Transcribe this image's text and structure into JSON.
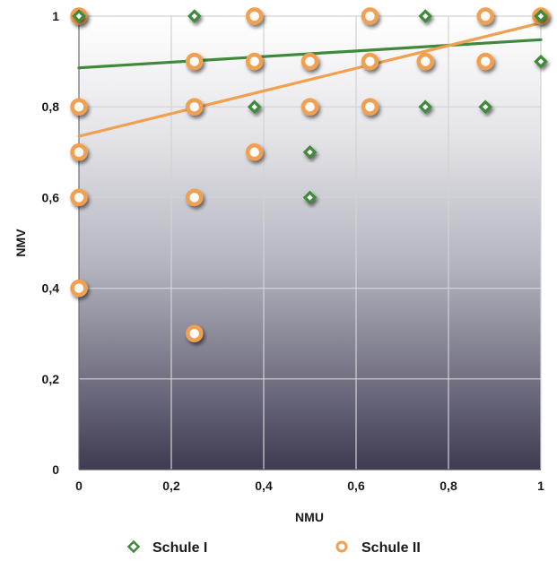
{
  "chart_data": {
    "type": "scatter",
    "xlabel": "NMU",
    "ylabel": "NMV",
    "xlim": [
      0,
      1
    ],
    "ylim": [
      0,
      1
    ],
    "x_ticks": [
      0,
      0.2,
      0.4,
      0.6,
      0.8,
      1
    ],
    "y_ticks": [
      0,
      0.2,
      0.4,
      0.6,
      0.8,
      1
    ],
    "x_tick_labels": [
      "0",
      "0,2",
      "0,4",
      "0,6",
      "0,8",
      "1"
    ],
    "y_tick_labels": [
      "0",
      "0,2",
      "0,4",
      "0,6",
      "0,8",
      "1"
    ],
    "grid": true,
    "legend_position": "bottom",
    "series": [
      {
        "name": "Schule I",
        "marker": "diamond",
        "color": "#3f8a3a",
        "points": [
          [
            0,
            1
          ],
          [
            0.25,
            1
          ],
          [
            0.38,
            0.8
          ],
          [
            0.5,
            0.7
          ],
          [
            0.5,
            0.6
          ],
          [
            0.75,
            1
          ],
          [
            0.75,
            0.8
          ],
          [
            0.88,
            0.8
          ],
          [
            1,
            1
          ],
          [
            1,
            0.9
          ]
        ],
        "trendline": {
          "from": [
            0,
            0.886
          ],
          "to": [
            1,
            0.948
          ]
        }
      },
      {
        "name": "Schule II",
        "marker": "circle",
        "color": "#f0a050",
        "points": [
          [
            0,
            1
          ],
          [
            0,
            0.8
          ],
          [
            0,
            0.7
          ],
          [
            0,
            0.6
          ],
          [
            0,
            0.4
          ],
          [
            0.25,
            0.9
          ],
          [
            0.25,
            0.8
          ],
          [
            0.25,
            0.6
          ],
          [
            0.25,
            0.3
          ],
          [
            0.38,
            1
          ],
          [
            0.38,
            0.9
          ],
          [
            0.38,
            0.7
          ],
          [
            0.5,
            0.9
          ],
          [
            0.5,
            0.8
          ],
          [
            0.63,
            1
          ],
          [
            0.63,
            0.9
          ],
          [
            0.63,
            0.8
          ],
          [
            0.75,
            0.9
          ],
          [
            0.88,
            1
          ],
          [
            0.88,
            0.9
          ],
          [
            1,
            1
          ]
        ],
        "trendline": {
          "from": [
            0,
            0.735
          ],
          "to": [
            1,
            0.985
          ]
        }
      }
    ]
  }
}
